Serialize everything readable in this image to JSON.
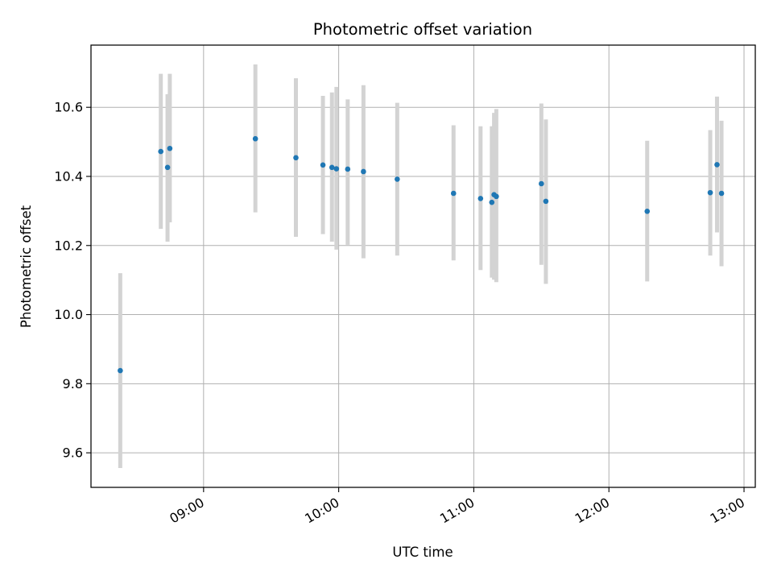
{
  "chart_data": {
    "type": "scatter",
    "title": "Photometric offset variation",
    "xlabel": "UTC time",
    "ylabel": "Photometric offset",
    "xlim": [
      "08:10",
      "13:05"
    ],
    "ylim": [
      9.5,
      10.78
    ],
    "x_ticks": [
      "09:00",
      "10:00",
      "11:00",
      "12:00",
      "13:00"
    ],
    "y_ticks": [
      "9.6",
      "9.8",
      "10.0",
      "10.2",
      "10.4",
      "10.6"
    ],
    "grid": true,
    "errorbar_color": "#d3d3d3",
    "marker_color": "#1f77b4",
    "points": [
      {
        "t": "08:23",
        "y": 9.838,
        "lo": 9.556,
        "hi": 10.12
      },
      {
        "t": "08:41",
        "y": 10.472,
        "lo": 10.248,
        "hi": 10.697
      },
      {
        "t": "08:44",
        "y": 10.426,
        "lo": 10.211,
        "hi": 10.638
      },
      {
        "t": "08:45",
        "y": 10.481,
        "lo": 10.267,
        "hi": 10.697
      },
      {
        "t": "09:23",
        "y": 10.509,
        "lo": 10.296,
        "hi": 10.724
      },
      {
        "t": "09:41",
        "y": 10.454,
        "lo": 10.225,
        "hi": 10.684
      },
      {
        "t": "09:53",
        "y": 10.433,
        "lo": 10.233,
        "hi": 10.633
      },
      {
        "t": "09:57",
        "y": 10.426,
        "lo": 10.211,
        "hi": 10.643
      },
      {
        "t": "09:59",
        "y": 10.422,
        "lo": 10.188,
        "hi": 10.659
      },
      {
        "t": "10:04",
        "y": 10.421,
        "lo": 10.202,
        "hi": 10.623
      },
      {
        "t": "10:11",
        "y": 10.414,
        "lo": 10.163,
        "hi": 10.664
      },
      {
        "t": "10:26",
        "y": 10.392,
        "lo": 10.171,
        "hi": 10.613
      },
      {
        "t": "10:51",
        "y": 10.351,
        "lo": 10.157,
        "hi": 10.548
      },
      {
        "t": "11:03",
        "y": 10.336,
        "lo": 10.129,
        "hi": 10.545
      },
      {
        "t": "11:08",
        "y": 10.325,
        "lo": 10.107,
        "hi": 10.545
      },
      {
        "t": "11:09",
        "y": 10.347,
        "lo": 10.101,
        "hi": 10.584
      },
      {
        "t": "11:10",
        "y": 10.342,
        "lo": 10.094,
        "hi": 10.595
      },
      {
        "t": "11:30",
        "y": 10.379,
        "lo": 10.144,
        "hi": 10.611
      },
      {
        "t": "11:32",
        "y": 10.328,
        "lo": 10.089,
        "hi": 10.565
      },
      {
        "t": "12:17",
        "y": 10.299,
        "lo": 10.096,
        "hi": 10.503
      },
      {
        "t": "12:45",
        "y": 10.353,
        "lo": 10.171,
        "hi": 10.534
      },
      {
        "t": "12:48",
        "y": 10.434,
        "lo": 10.238,
        "hi": 10.631
      },
      {
        "t": "12:50",
        "y": 10.351,
        "lo": 10.14,
        "hi": 10.561
      }
    ]
  }
}
